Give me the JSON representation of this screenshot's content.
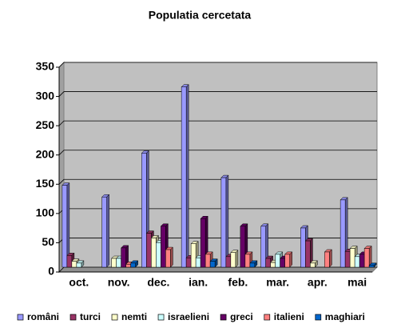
{
  "chart_data": {
    "type": "bar",
    "title": "Populatia cercetata",
    "categories": [
      "oct.",
      "nov.",
      "dec.",
      "ian.",
      "feb.",
      "mar.",
      "apr.",
      "mai"
    ],
    "series": [
      {
        "name": "români",
        "color": "#9999ff",
        "values": [
          140,
          120,
          195,
          308,
          153,
          70,
          67,
          115
        ]
      },
      {
        "name": "turci",
        "color": "#993366",
        "values": [
          20,
          0,
          58,
          16,
          18,
          15,
          45,
          27
        ]
      },
      {
        "name": "nemti",
        "color": "#ffffcc",
        "values": [
          10,
          15,
          50,
          40,
          25,
          8,
          7,
          32
        ]
      },
      {
        "name": "israelieni",
        "color": "#ccffff",
        "values": [
          7,
          15,
          42,
          16,
          0,
          22,
          0,
          18
        ]
      },
      {
        "name": "greci",
        "color": "#660066",
        "values": [
          0,
          33,
          70,
          83,
          70,
          15,
          0,
          22
        ]
      },
      {
        "name": "italieni",
        "color": "#ff8080",
        "values": [
          0,
          5,
          30,
          22,
          22,
          22,
          26,
          32
        ]
      },
      {
        "name": "maghiari",
        "color": "#0066cc",
        "values": [
          0,
          7,
          0,
          10,
          7,
          0,
          0,
          3
        ]
      }
    ],
    "ylim": [
      0,
      350
    ],
    "yticks": [
      0,
      50,
      100,
      150,
      200,
      250,
      300,
      350
    ],
    "grid": true,
    "legend": "bottom"
  }
}
